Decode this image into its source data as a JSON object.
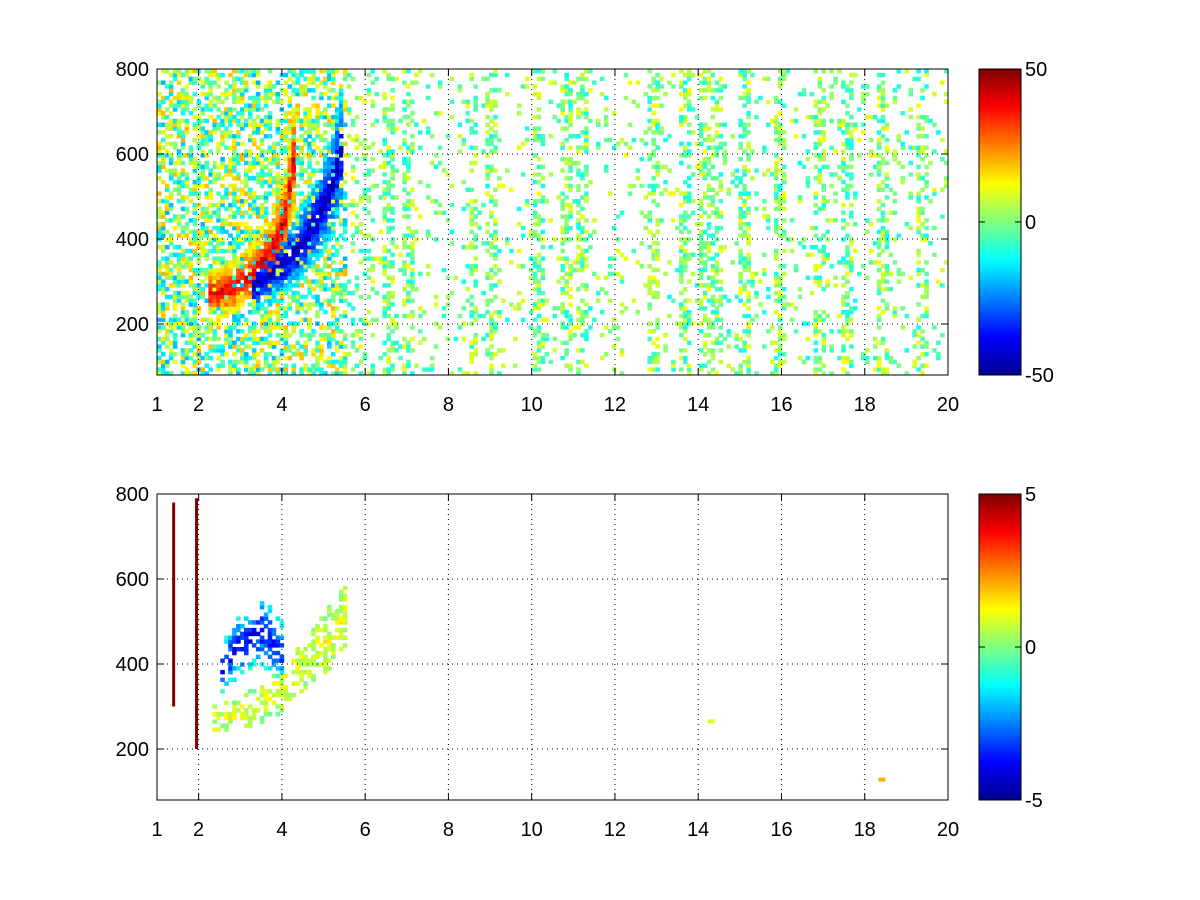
{
  "chart_data": [
    {
      "type": "heatmap",
      "title": "",
      "xlabel": "",
      "ylabel": "",
      "xlim": [
        1,
        20
      ],
      "ylim": [
        80,
        800
      ],
      "x_ticks": [
        "1",
        "2",
        "4",
        "6",
        "8",
        "10",
        "12",
        "14",
        "16",
        "18",
        "20"
      ],
      "x_tick_values": [
        1,
        2,
        4,
        6,
        8,
        10,
        12,
        14,
        16,
        18,
        20
      ],
      "y_ticks": [
        "200",
        "400",
        "600",
        "800"
      ],
      "y_tick_values": [
        200,
        400,
        600,
        800
      ],
      "grid": true,
      "colormap": "jet",
      "colorbar": {
        "min": -50,
        "max": 50,
        "ticks": [
          "-50",
          "0",
          "50"
        ],
        "tick_values": [
          -50,
          0,
          50
        ],
        "placement": "right"
      },
      "features": [
        {
          "description": "positive ridge",
          "x": [
            2.2,
            2.8,
            3.3,
            3.8,
            4.1,
            4.3
          ],
          "y": [
            270,
            285,
            320,
            380,
            460,
            600
          ],
          "value": 40
        },
        {
          "description": "negative ridge",
          "x": [
            3.3,
            3.9,
            4.4,
            4.8,
            5.2,
            5.5
          ],
          "y": [
            290,
            330,
            380,
            440,
            520,
            640
          ],
          "value": -45
        }
      ],
      "vertical_bands": [
        1.4,
        1.95,
        3.0,
        5.4,
        5.8,
        6.6,
        7.0,
        8.6,
        9.0,
        10.2,
        10.8,
        11.2,
        12.9,
        13.7,
        14.2,
        14.4,
        15.1,
        16.0,
        16.9,
        17.6,
        18.4,
        19.4
      ]
    },
    {
      "type": "heatmap",
      "title": "",
      "xlabel": "",
      "ylabel": "",
      "xlim": [
        1,
        20
      ],
      "ylim": [
        80,
        800
      ],
      "x_ticks": [
        "1",
        "2",
        "4",
        "6",
        "8",
        "10",
        "12",
        "14",
        "16",
        "18",
        "20"
      ],
      "x_tick_values": [
        1,
        2,
        4,
        6,
        8,
        10,
        12,
        14,
        16,
        18,
        20
      ],
      "y_ticks": [
        "200",
        "400",
        "600",
        "800"
      ],
      "y_tick_values": [
        200,
        400,
        600,
        800
      ],
      "grid": true,
      "colormap": "jet",
      "colorbar": {
        "min": -5,
        "max": 5,
        "ticks": [
          "-5",
          "0",
          "5"
        ],
        "tick_values": [
          -5,
          0,
          5
        ],
        "placement": "right"
      },
      "features": [
        {
          "description": "main band",
          "x": [
            2.3,
            2.8,
            3.4,
            4.0,
            4.6,
            5.2,
            5.6
          ],
          "y": [
            280,
            275,
            300,
            340,
            410,
            470,
            520
          ],
          "value": 1
        },
        {
          "description": "negative patch",
          "x": [
            2.5,
            3.0,
            3.5,
            4.0
          ],
          "y": [
            380,
            450,
            480,
            430
          ],
          "value": -4
        }
      ],
      "isolated_points": [
        {
          "x": 1.4,
          "y_from": 300,
          "y_to": 780,
          "value": 5
        },
        {
          "x": 1.95,
          "y_from": 200,
          "y_to": 790,
          "value": 5
        },
        {
          "x": 14.3,
          "y": 265,
          "value": 1
        },
        {
          "x": 18.4,
          "y": 128,
          "value": 2
        }
      ]
    }
  ]
}
